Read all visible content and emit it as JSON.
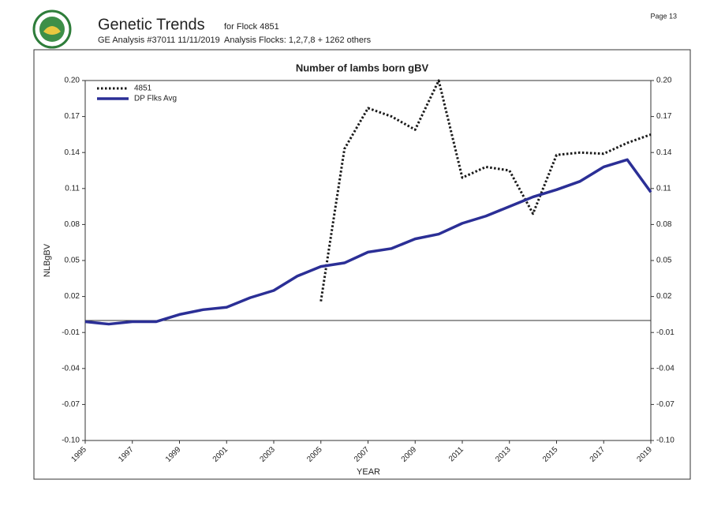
{
  "header": {
    "title": "Genetic Trends",
    "flock": "for Flock 4851",
    "analysis": "GE Analysis #37011 11/11/2019",
    "flocks": "Analysis Flocks: 1,2,7,8 + 1262 others",
    "page": "Page 13"
  },
  "chart_data": {
    "type": "line",
    "title": "Number of lambs born gBV",
    "xlabel": "YEAR",
    "ylabel": "NLBgBV",
    "x": [
      1995,
      1996,
      1997,
      1998,
      1999,
      2000,
      2001,
      2002,
      2003,
      2004,
      2005,
      2006,
      2007,
      2008,
      2009,
      2010,
      2011,
      2012,
      2013,
      2014,
      2015,
      2016,
      2017,
      2018,
      2019
    ],
    "series": [
      {
        "name": "4851",
        "color": "#1a1a1a",
        "dashed": true,
        "values": [
          null,
          null,
          null,
          null,
          null,
          null,
          null,
          null,
          null,
          null,
          0.016,
          0.143,
          0.177,
          0.17,
          0.159,
          0.2,
          0.119,
          0.128,
          0.125,
          0.089,
          0.138,
          0.14,
          0.139,
          0.148,
          0.155
        ]
      },
      {
        "name": "DP Flks Avg",
        "color": "#2b2f96",
        "dashed": false,
        "values": [
          -0.001,
          -0.003,
          -0.001,
          -0.001,
          0.005,
          0.009,
          0.011,
          0.019,
          0.025,
          0.037,
          0.045,
          0.048,
          0.057,
          0.06,
          0.068,
          0.072,
          0.081,
          0.087,
          0.095,
          0.103,
          0.109,
          0.116,
          0.128,
          0.134,
          0.107
        ]
      }
    ],
    "xlim": [
      1995,
      2019
    ],
    "xticks": [
      1995,
      1997,
      1999,
      2001,
      2003,
      2005,
      2007,
      2009,
      2011,
      2013,
      2015,
      2017,
      2019
    ],
    "ylim": [
      -0.1,
      0.2
    ],
    "yticks": [
      {
        "value": -0.1,
        "label": "-0.10"
      },
      -0.07,
      -0.04,
      -0.01,
      0.02,
      0.05,
      0.08,
      0.11,
      0.14,
      0.17,
      {
        "value": 0.2,
        "label": "0.20"
      }
    ],
    "legend": "upper-left"
  }
}
